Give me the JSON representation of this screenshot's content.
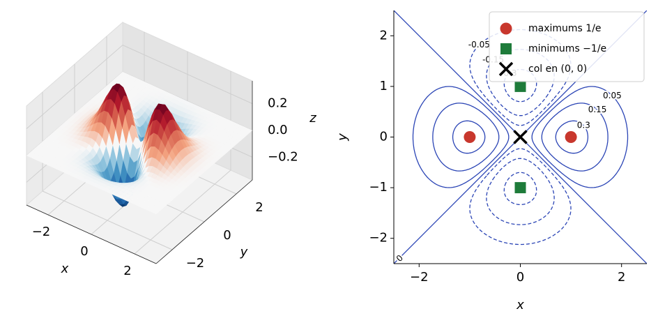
{
  "chart_data": [
    {
      "type": "surface3d",
      "xlabel": "x",
      "ylabel": "y",
      "zlabel": "z",
      "xlim": [
        -3,
        3
      ],
      "ylim": [
        -3,
        3
      ],
      "zlim": [
        -0.37,
        0.37
      ],
      "xticks": [
        {
          "value": -2,
          "label": "−2"
        },
        0,
        2
      ],
      "yticks": [
        {
          "value": -2,
          "label": "−2"
        },
        0,
        2
      ],
      "zticks": [
        {
          "value": -0.2,
          "label": "−0.2"
        },
        {
          "value": 0,
          "label": "0.0"
        },
        0.2
      ]
    },
    {
      "type": "contour",
      "xlabel": "x",
      "ylabel": "y",
      "xlim": [
        -2.5,
        2.5
      ],
      "ylim": [
        -2.5,
        2.5
      ],
      "xticks": [
        {
          "value": -2,
          "label": "−2"
        },
        0,
        2
      ],
      "yticks": [
        {
          "value": -2,
          "label": "−2"
        },
        {
          "value": -1,
          "label": "−1"
        },
        0,
        1,
        2
      ],
      "levels": [
        -0.3,
        -0.15,
        -0.05,
        0,
        0.05,
        0.15,
        0.3
      ],
      "color": "#2a44b5",
      "legend": "upper right",
      "series": [
        {
          "name": "maximums 1/e",
          "color": "#c8372d",
          "marker": "circle",
          "x": [
            -1,
            1
          ],
          "y": [
            0,
            0
          ]
        },
        {
          "name": "minimums −1/e",
          "color": "#1e7b3a",
          "marker": "square",
          "x": [
            0,
            0
          ],
          "y": [
            1,
            -1
          ]
        },
        {
          "name": "col en (0, 0)",
          "color": "#000000",
          "marker": "x",
          "x": [
            0
          ],
          "y": [
            0
          ]
        }
      ]
    }
  ]
}
